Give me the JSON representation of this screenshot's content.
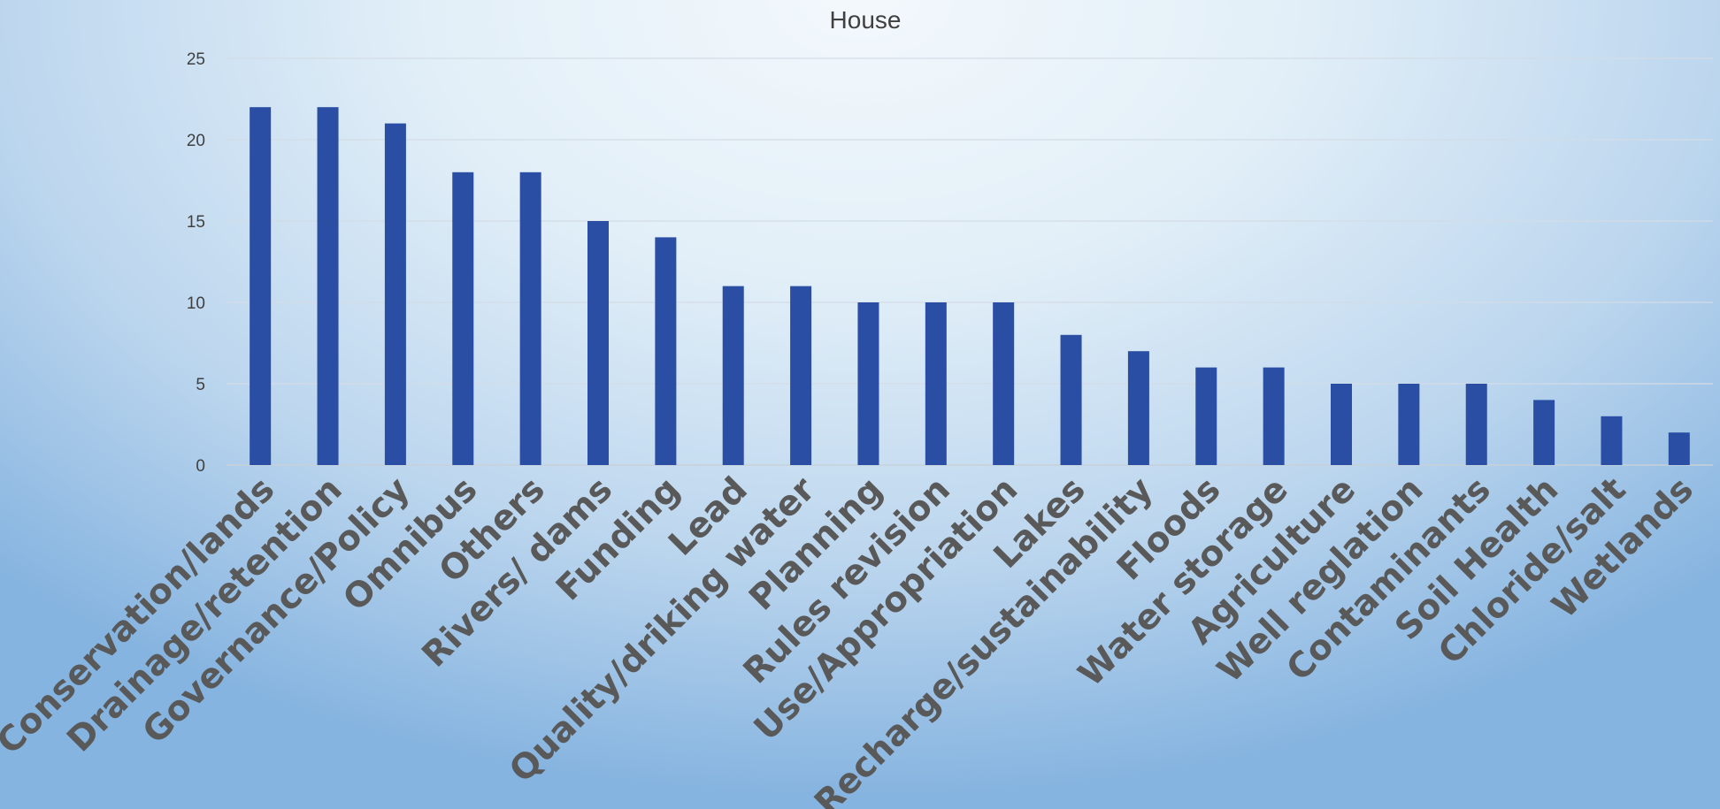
{
  "chart_data": {
    "type": "bar",
    "title": "House",
    "xlabel": "",
    "ylabel": "",
    "ylim": [
      0,
      25
    ],
    "yticks": [
      0,
      5,
      10,
      15,
      20,
      25
    ],
    "grid": true,
    "bar_color": "#2a4ea3",
    "categories": [
      "Conservation/lands",
      "Drainage/retention",
      "Governance/Policy",
      "Omnibus",
      "Others",
      "Rivers/ dams",
      "Funding",
      "Lead",
      "Quality/driking water",
      "Planning",
      "Rules revision",
      "Use/Appropriation",
      "Lakes",
      "Recharge/sustainability",
      "Floods",
      "Water storage",
      "Agriculture",
      "Well reglation",
      "Contaminants",
      "Soil Health",
      "Chloride/salt",
      "Wetlands"
    ],
    "values": [
      22,
      22,
      21,
      18,
      18,
      15,
      14,
      11,
      11,
      10,
      10,
      10,
      8,
      7,
      6,
      6,
      5,
      5,
      5,
      4,
      3,
      2
    ]
  }
}
